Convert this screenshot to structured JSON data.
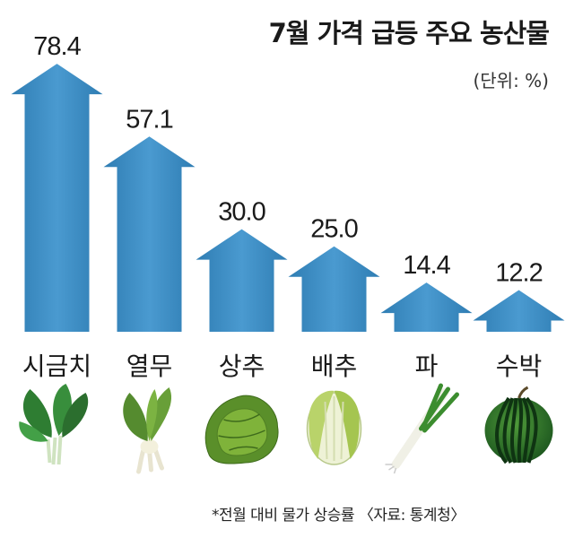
{
  "chart_data": {
    "type": "bar",
    "title": "7월 가격 급등 주요 농산물",
    "unit_label": "(단위: %)",
    "categories": [
      "시금치",
      "열무",
      "상추",
      "배추",
      "파",
      "수박"
    ],
    "values": [
      78.4,
      57.1,
      30.0,
      25.0,
      14.4,
      12.2
    ],
    "value_labels": [
      "78.4",
      "57.1",
      "30.0",
      "25.0",
      "14.4",
      "12.2"
    ],
    "icons": [
      "spinach-icon",
      "young-radish-icon",
      "lettuce-icon",
      "napa-cabbage-icon",
      "green-onion-icon",
      "watermelon-icon"
    ],
    "footnote": "*전월 대비 물가 상승률 〈자료: 통계청〉",
    "bar_color": "#3f8fc4",
    "ylim": [
      0,
      80
    ]
  }
}
